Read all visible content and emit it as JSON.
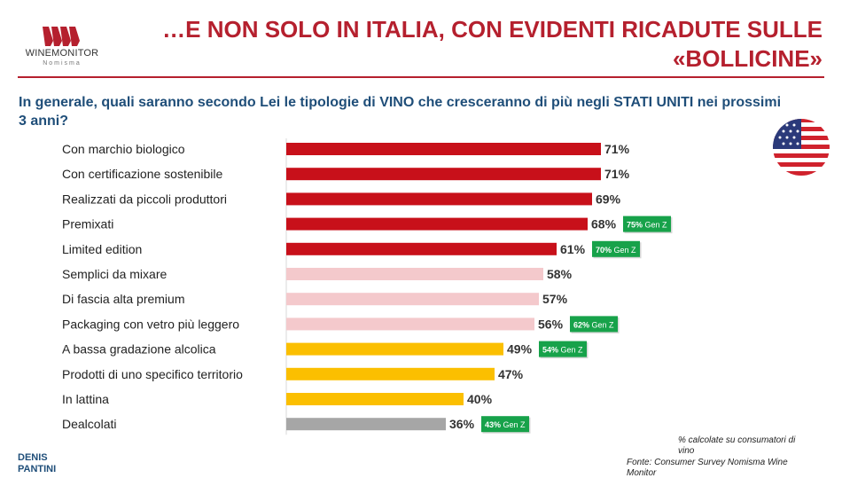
{
  "header": {
    "title_line1": "…E NON SOLO IN ITALIA, CON EVIDENTI RICADUTE SULLE",
    "title_line2": "«BOLLICINE»",
    "logo_text": "WINEMONITOR",
    "logo_sub": "Nomisma"
  },
  "question": {
    "prefix": "In generale, quali saranno secondo Lei le tipologie di VINO che cresceranno di più negli ",
    "highlight": "STATI UNITI",
    "suffix": " nei prossimi 3 anni?"
  },
  "flag_icon": "usa-flag-icon",
  "colors": {
    "title": "#b5202e",
    "question": "#1f4e79",
    "red": "#c8101a",
    "pink": "#f4c9cc",
    "yellow": "#fbbf00",
    "gray": "#a6a6a6",
    "genz": "#17a24a"
  },
  "chart_data": {
    "type": "bar",
    "orientation": "horizontal",
    "unit": "%",
    "xlim": [
      0,
      100
    ],
    "categories": [
      "Con marchio biologico",
      "Con certificazione sostenibile",
      "Realizzati da piccoli produttori",
      "Premixati",
      "Limited edition",
      "Semplici da mixare",
      "Di fascia alta premium",
      "Packaging con vetro più leggero",
      "A bassa gradazione alcolica",
      "Prodotti di uno specifico territorio",
      "In lattina",
      "Dealcolati"
    ],
    "values": [
      71,
      71,
      69,
      68,
      61,
      58,
      57,
      56,
      49,
      47,
      40,
      36
    ],
    "value_labels": [
      "71%",
      "71%",
      "69%",
      "68%",
      "61%",
      "58%",
      "57%",
      "56%",
      "49%",
      "47%",
      "40%",
      "36%"
    ],
    "bar_colors": [
      "#c8101a",
      "#c8101a",
      "#c8101a",
      "#c8101a",
      "#c8101a",
      "#f4c9cc",
      "#f4c9cc",
      "#f4c9cc",
      "#fbbf00",
      "#fbbf00",
      "#fbbf00",
      "#a6a6a6"
    ],
    "genz": [
      null,
      null,
      null,
      "75%",
      "70%",
      null,
      null,
      "62%",
      "54%",
      null,
      null,
      "43%"
    ],
    "genz_suffix": "Gen Z"
  },
  "footer": {
    "note": "% calcolate su consumatori di vino",
    "source": "Fonte: Consumer Survey Nomisma Wine Monitor",
    "author_line1": "DENIS",
    "author_line2": "PANTINI"
  }
}
